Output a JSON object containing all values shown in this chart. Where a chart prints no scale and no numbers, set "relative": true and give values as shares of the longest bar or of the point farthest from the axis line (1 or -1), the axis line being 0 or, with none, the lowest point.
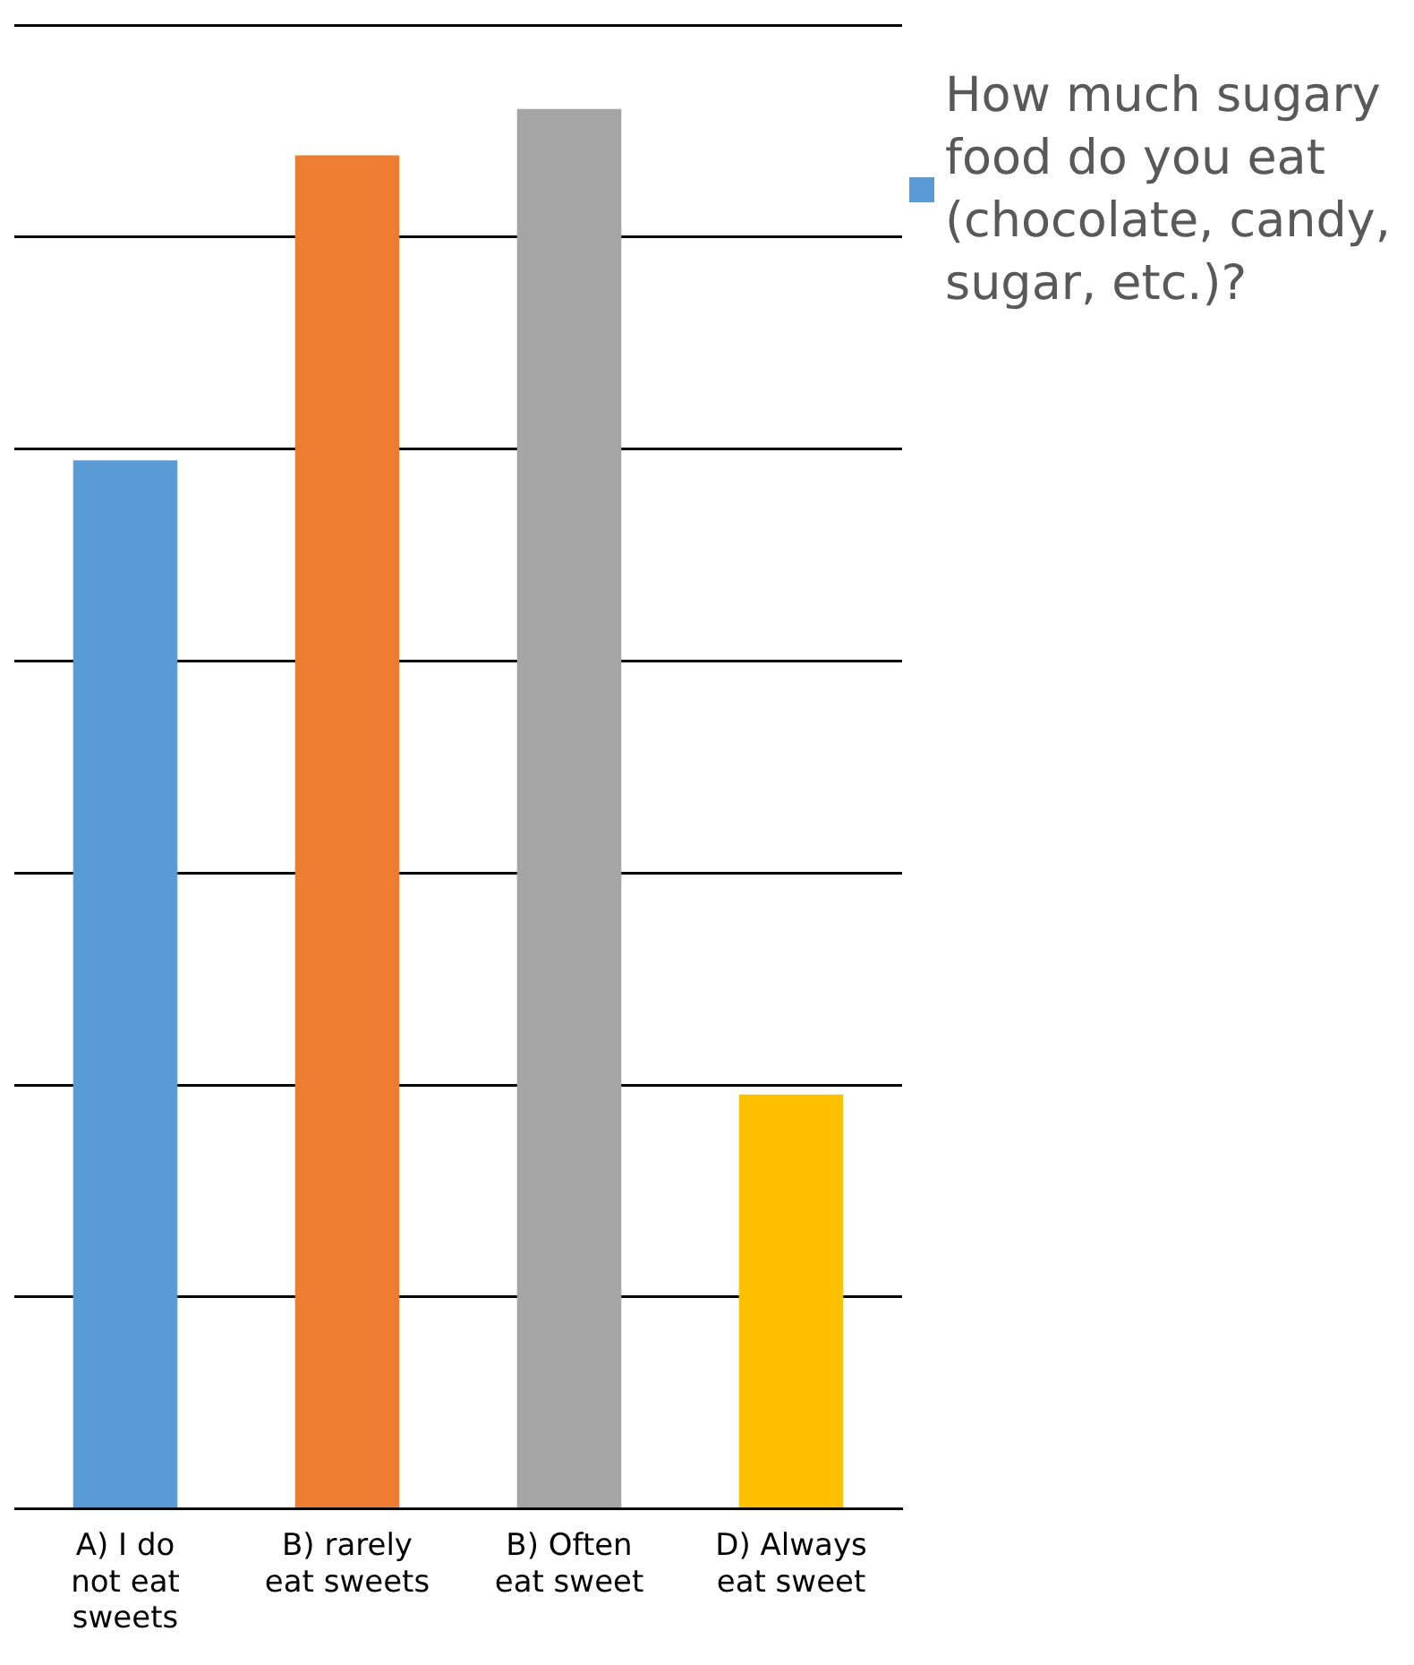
{
  "chart_data": {
    "type": "bar",
    "relative": true,
    "categories": [
      "A) I do not eat sweets",
      "B) rarely eat sweets",
      "B) Often eat sweet",
      "D) Always eat sweet"
    ],
    "series": [
      {
        "name": "How much sugary food do you eat (chocolate, candy, sugar, etc.)?",
        "color": "#5b9bd5",
        "colors": [
          "#5b9bd5",
          "#ed7d31",
          "#a5a5a5",
          "#ffc000"
        ],
        "values": [
          0.749,
          0.967,
          1,
          0.296
        ]
      }
    ],
    "grid": "y",
    "legend": "right"
  }
}
